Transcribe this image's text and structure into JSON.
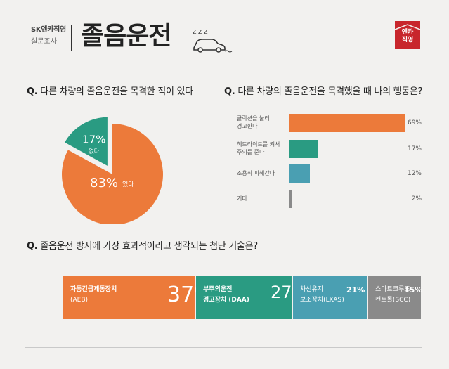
{
  "header": {
    "brand": "SK엔카직영",
    "subtitle": "설문조사",
    "title": "졸음운전",
    "zzz": "Z Z Z",
    "logo_line1": "엔카",
    "logo_line2": "직영"
  },
  "q1": {
    "prefix": "Q.",
    "text": "다른 차량의 졸음운전을 목격한 적이 있다"
  },
  "q2": {
    "prefix": "Q.",
    "text": "다른 차량의 졸음운전을 목격했을 때 나의 행동은?"
  },
  "q3": {
    "prefix": "Q.",
    "text": "졸음운전 방지에 가장 효과적이라고 생각되는 첨단 기술은?"
  },
  "colors": {
    "orange": "#ec7a3a",
    "teal": "#2a9b82",
    "blue": "#4a9fb2",
    "gray": "#8a8a8a",
    "red": "#c8262c"
  },
  "chart_data": [
    {
      "type": "pie",
      "labels": [
        "있다",
        "없다"
      ],
      "values": [
        83,
        17
      ],
      "value_labels": [
        "83%",
        "17%"
      ],
      "colors": [
        "#ec7a3a",
        "#2a9b82"
      ]
    },
    {
      "type": "bar",
      "orientation": "horizontal",
      "categories": [
        [
          "클락션을 눌러",
          "경고한다"
        ],
        [
          "헤드라이트를 켜서",
          "주의를 준다"
        ],
        [
          "조용히 피해간다"
        ],
        [
          "기타"
        ]
      ],
      "values": [
        69,
        17,
        12,
        2
      ],
      "value_labels": [
        "69%",
        "17%",
        "12%",
        "2%"
      ],
      "colors": [
        "#ec7a3a",
        "#2a9b82",
        "#4a9fb2",
        "#8a8a8a"
      ]
    },
    {
      "type": "bar",
      "orientation": "stacked-100",
      "categories": [
        [
          "자동긴급제동장치",
          "(AEB)"
        ],
        [
          "부주의운전",
          "경고장치 (DAA)"
        ],
        [
          "차선유지",
          "보조장치(LKAS)"
        ],
        [
          "스마트크루즈",
          "컨트롤(SCC)"
        ]
      ],
      "values": [
        37,
        27,
        21,
        15
      ],
      "value_labels": [
        "37%",
        "27%",
        "21%",
        "15%"
      ],
      "colors": [
        "#ec7a3a",
        "#2a9b82",
        "#4a9fb2",
        "#8a8a8a"
      ]
    }
  ]
}
